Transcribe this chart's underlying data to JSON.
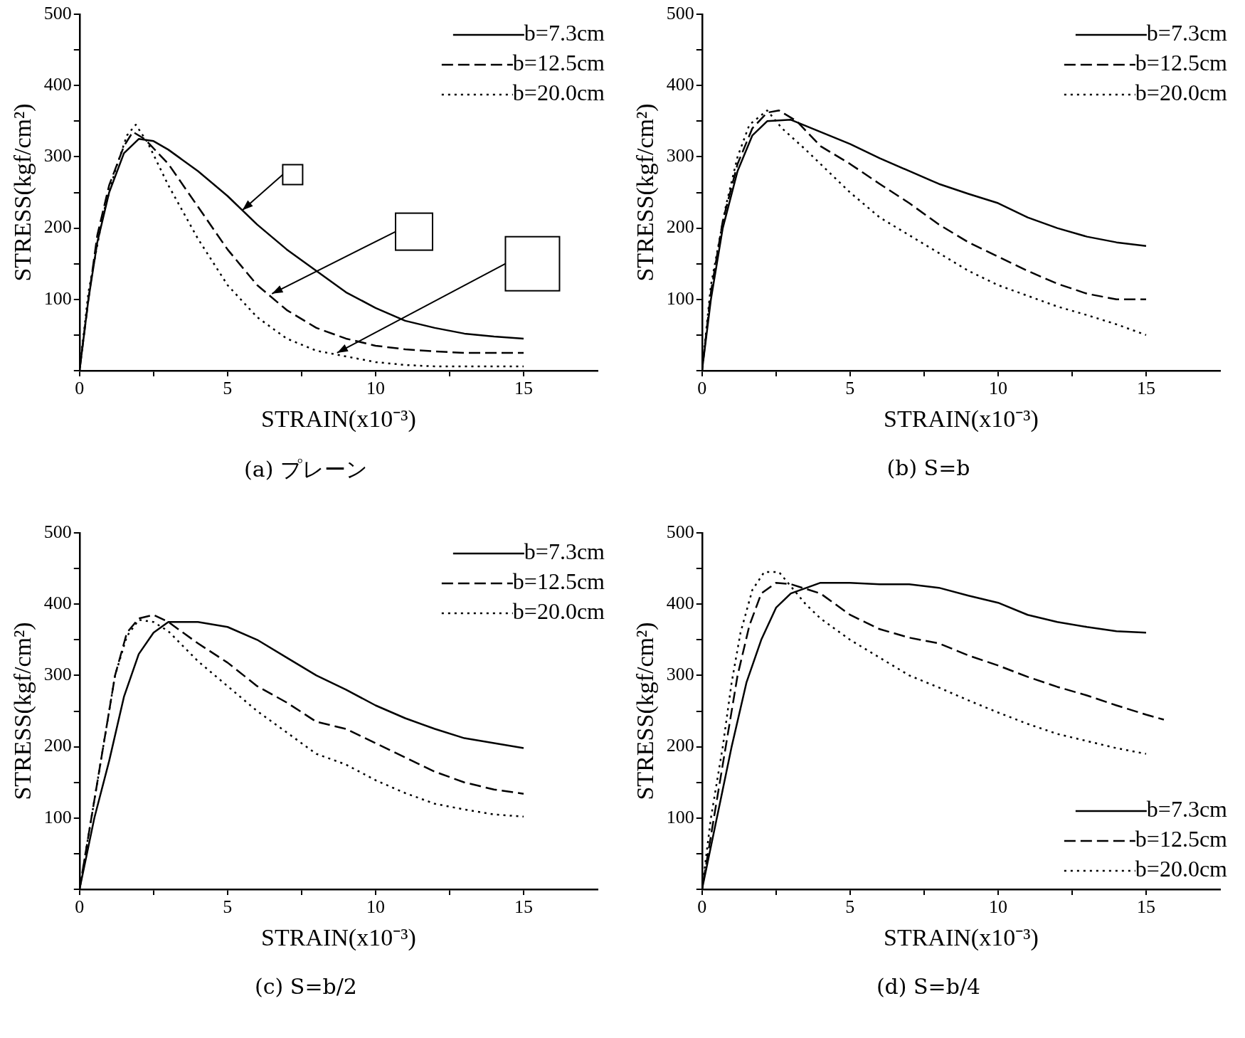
{
  "chart_data": [
    {
      "type": "line",
      "title": "(a) プレーン",
      "xlabel": "STRAIN(x10⁻³)",
      "ylabel": "STRESS(kgf/cm²)",
      "xlim": [
        0,
        17.5
      ],
      "ylim": [
        0,
        500
      ],
      "xticks": [
        0,
        {
          "value": 2.5,
          "label": null
        },
        5,
        {
          "value": 7.5,
          "label": null
        },
        10,
        {
          "value": 12.5,
          "label": null
        },
        15
      ],
      "yticks": [
        {
          "value": 0,
          "label": null
        },
        {
          "value": 50,
          "label": null
        },
        100,
        {
          "value": 150,
          "label": null
        },
        200,
        {
          "value": 250,
          "label": null
        },
        300,
        {
          "value": 350,
          "label": null
        },
        400,
        {
          "value": 450,
          "label": null
        },
        500
      ],
      "grid": false,
      "legend": "top right",
      "marker": "none",
      "series": [
        {
          "name": "b=7.3cm",
          "color": "#000000",
          "line_style": "solid",
          "x": [
            0,
            0.3,
            0.6,
            1,
            1.5,
            2,
            2.5,
            3,
            4,
            5,
            6,
            7,
            8,
            9,
            10,
            11,
            12,
            13,
            14,
            15
          ],
          "values": [
            0,
            100,
            180,
            250,
            305,
            325,
            322,
            310,
            280,
            245,
            205,
            170,
            140,
            110,
            88,
            70,
            60,
            52,
            48,
            45
          ]
        },
        {
          "name": "b=12.5cm",
          "color": "#000000",
          "line_style": "dashed",
          "x": [
            0,
            0.3,
            0.6,
            1,
            1.5,
            1.8,
            2.2,
            3,
            4,
            5,
            6,
            7,
            8,
            9,
            10,
            11,
            12,
            13,
            14,
            15
          ],
          "values": [
            0,
            100,
            190,
            260,
            315,
            335,
            325,
            290,
            230,
            170,
            120,
            85,
            60,
            45,
            35,
            30,
            27,
            25,
            25,
            25
          ]
        },
        {
          "name": "b=20.0cm",
          "color": "#000000",
          "line_style": "dotted",
          "x": [
            0,
            0.3,
            0.8,
            1.2,
            1.6,
            1.9,
            2.3,
            3,
            4,
            5,
            6,
            7,
            8,
            9,
            10,
            11,
            12,
            13,
            14,
            15
          ],
          "values": [
            0,
            110,
            220,
            280,
            330,
            345,
            320,
            260,
            185,
            120,
            75,
            45,
            28,
            20,
            12,
            8,
            6,
            6,
            6,
            6
          ]
        }
      ]
    },
    {
      "type": "line",
      "title": "(b) S=b",
      "xlabel": "STRAIN(x10⁻³)",
      "ylabel": "STRESS(kgf/cm²)",
      "xlim": [
        0,
        17.5
      ],
      "ylim": [
        0,
        500
      ],
      "xticks": [
        0,
        {
          "value": 2.5,
          "label": null
        },
        5,
        {
          "value": 7.5,
          "label": null
        },
        10,
        {
          "value": 12.5,
          "label": null
        },
        15
      ],
      "yticks": [
        {
          "value": 0,
          "label": null
        },
        {
          "value": 50,
          "label": null
        },
        100,
        {
          "value": 150,
          "label": null
        },
        200,
        {
          "value": 250,
          "label": null
        },
        300,
        {
          "value": 350,
          "label": null
        },
        400,
        {
          "value": 450,
          "label": null
        },
        500
      ],
      "grid": false,
      "legend": "top right",
      "marker": "none",
      "series": [
        {
          "name": "b=7.3cm",
          "color": "#000000",
          "line_style": "solid",
          "x": [
            0,
            0.3,
            0.7,
            1.2,
            1.7,
            2.2,
            3,
            4,
            5,
            6,
            7,
            8,
            9,
            10,
            11,
            12,
            13,
            14,
            15
          ],
          "values": [
            0,
            100,
            200,
            280,
            330,
            350,
            352,
            335,
            318,
            298,
            280,
            262,
            248,
            235,
            215,
            200,
            188,
            180,
            175
          ]
        },
        {
          "name": "b=12.5cm",
          "color": "#000000",
          "line_style": "dashed",
          "x": [
            0,
            0.3,
            0.7,
            1.2,
            1.7,
            2.2,
            2.6,
            3.2,
            4,
            5,
            6,
            7,
            8,
            9,
            10,
            11,
            12,
            13,
            14,
            15
          ],
          "values": [
            0,
            110,
            210,
            290,
            340,
            362,
            365,
            350,
            315,
            290,
            262,
            235,
            205,
            180,
            160,
            140,
            122,
            108,
            100,
            100
          ]
        },
        {
          "name": "b=20.0cm",
          "color": "#000000",
          "line_style": "dotted",
          "x": [
            0,
            0.3,
            0.8,
            1.2,
            1.6,
            2.2,
            2.7,
            3.5,
            4,
            5,
            6,
            7,
            8,
            9,
            10,
            11,
            12,
            13,
            14,
            15
          ],
          "values": [
            0,
            120,
            230,
            300,
            345,
            365,
            340,
            310,
            290,
            250,
            215,
            190,
            165,
            140,
            120,
            105,
            90,
            78,
            65,
            50
          ]
        }
      ]
    },
    {
      "type": "line",
      "title": "(c) S=b/2",
      "xlabel": "STRAIN(x10⁻³)",
      "ylabel": "STRESS(kgf/cm²)",
      "xlim": [
        0,
        17.5
      ],
      "ylim": [
        0,
        500
      ],
      "xticks": [
        0,
        {
          "value": 2.5,
          "label": null
        },
        5,
        {
          "value": 7.5,
          "label": null
        },
        10,
        {
          "value": 12.5,
          "label": null
        },
        15
      ],
      "yticks": [
        {
          "value": 0,
          "label": null
        },
        {
          "value": 50,
          "label": null
        },
        100,
        {
          "value": 150,
          "label": null
        },
        200,
        {
          "value": 250,
          "label": null
        },
        300,
        {
          "value": 350,
          "label": null
        },
        400,
        {
          "value": 450,
          "label": null
        },
        500
      ],
      "grid": false,
      "legend": "top right",
      "marker": "none",
      "series": [
        {
          "name": "b=7.3cm",
          "color": "#000000",
          "line_style": "solid",
          "x": [
            0,
            0.5,
            1,
            1.5,
            2,
            2.5,
            3,
            4,
            5,
            6,
            7,
            8,
            9,
            10,
            11,
            12,
            13,
            14,
            15
          ],
          "values": [
            0,
            100,
            180,
            270,
            330,
            360,
            375,
            375,
            368,
            350,
            325,
            300,
            280,
            258,
            240,
            225,
            212,
            205,
            198
          ]
        },
        {
          "name": "b=12.5cm",
          "color": "#000000",
          "line_style": "dashed",
          "x": [
            0,
            0.4,
            0.8,
            1.2,
            1.6,
            2,
            2.5,
            3,
            4,
            5,
            6,
            7,
            8,
            9,
            10,
            11,
            12,
            13,
            14,
            15
          ],
          "values": [
            0,
            100,
            200,
            300,
            360,
            380,
            385,
            375,
            345,
            318,
            285,
            262,
            235,
            225,
            205,
            185,
            165,
            150,
            140,
            134
          ]
        },
        {
          "name": "b=20.0cm",
          "color": "#000000",
          "line_style": "dotted",
          "x": [
            0,
            0.4,
            0.8,
            1.2,
            1.6,
            2,
            2.5,
            3,
            4,
            5,
            6,
            7,
            8,
            9,
            10,
            11,
            12,
            13,
            14,
            15
          ],
          "values": [
            0,
            100,
            200,
            300,
            355,
            378,
            375,
            362,
            320,
            285,
            250,
            220,
            190,
            175,
            153,
            135,
            120,
            112,
            105,
            102
          ]
        }
      ]
    },
    {
      "type": "line",
      "title": "(d) S=b/4",
      "xlabel": "STRAIN(x10⁻³)",
      "ylabel": "STRESS(kgf/cm²)",
      "xlim": [
        0,
        17.5
      ],
      "ylim": [
        0,
        500
      ],
      "xticks": [
        0,
        {
          "value": 2.5,
          "label": null
        },
        5,
        {
          "value": 7.5,
          "label": null
        },
        10,
        {
          "value": 12.5,
          "label": null
        },
        15
      ],
      "yticks": [
        {
          "value": 0,
          "label": null
        },
        {
          "value": 50,
          "label": null
        },
        100,
        {
          "value": 150,
          "label": null
        },
        200,
        {
          "value": 250,
          "label": null
        },
        300,
        {
          "value": 350,
          "label": null
        },
        400,
        {
          "value": 450,
          "label": null
        },
        500
      ],
      "grid": false,
      "legend": "bottom right",
      "marker": "none",
      "series": [
        {
          "name": "b=7.3cm",
          "color": "#000000",
          "line_style": "solid",
          "x": [
            0,
            0.5,
            1,
            1.5,
            2,
            2.5,
            3,
            4,
            5,
            6,
            7,
            8,
            9,
            10,
            11,
            12,
            13,
            14,
            15
          ],
          "values": [
            0,
            100,
            200,
            290,
            350,
            395,
            415,
            430,
            430,
            428,
            428,
            423,
            412,
            402,
            385,
            375,
            368,
            362,
            360
          ]
        },
        {
          "name": "b=12.5cm",
          "color": "#000000",
          "line_style": "dashed",
          "x": [
            0,
            0.4,
            0.8,
            1.2,
            1.6,
            2,
            2.5,
            3,
            4,
            5,
            6,
            7,
            8,
            9,
            10,
            11,
            12,
            13,
            14,
            15,
            15.6
          ],
          "values": [
            0,
            100,
            200,
            300,
            370,
            415,
            430,
            428,
            415,
            385,
            365,
            353,
            345,
            328,
            314,
            298,
            284,
            272,
            258,
            245,
            238
          ]
        },
        {
          "name": "b=20.0cm",
          "color": "#000000",
          "line_style": "dotted",
          "x": [
            0,
            0.3,
            0.7,
            1,
            1.3,
            1.7,
            2.1,
            2.6,
            3,
            3.5,
            4,
            5,
            6,
            7,
            8,
            9,
            10,
            11,
            12,
            13,
            14,
            15
          ],
          "values": [
            0,
            100,
            200,
            290,
            360,
            420,
            445,
            445,
            425,
            400,
            380,
            350,
            325,
            300,
            283,
            265,
            248,
            232,
            218,
            208,
            198,
            190
          ]
        }
      ]
    }
  ]
}
